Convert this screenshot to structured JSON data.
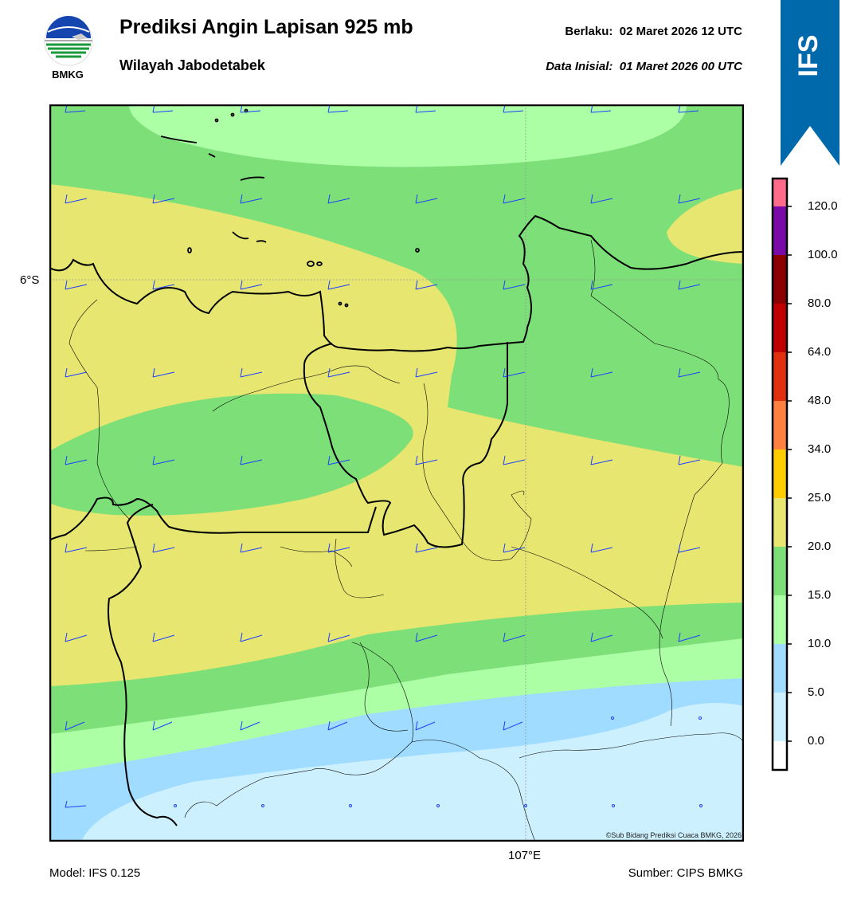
{
  "header": {
    "title": "Prediksi Angin Lapisan 925 mb",
    "subtitle": "Wilayah Jabodetabek",
    "valid_label": "Berlaku:",
    "valid_time": "02 Maret 2026 12 UTC",
    "init_label": "Data Inisial:",
    "init_time": "01 Maret 2026 00 UTC"
  },
  "logo": {
    "text": "BMKG",
    "icon": "bmkg-logo"
  },
  "ribbon": {
    "text": "IFS",
    "color": "#0069ab"
  },
  "map": {
    "lat_label": "6°S",
    "lon_label": "107°E",
    "credit": "©Sub Bidang Prediksi Cuaca BMKG, 2026",
    "wind_barb_color": "#1f3fff"
  },
  "colorbar": {
    "ticks": [
      "120.0",
      "100.0",
      "80.0",
      "64.0",
      "48.0",
      "34.0",
      "25.0",
      "20.0",
      "15.0",
      "10.0",
      "5.0",
      "0.0"
    ],
    "colors": [
      "#ff6b8a",
      "#7a0aa8",
      "#8b0000",
      "#c00000",
      "#e03010",
      "#ff8040",
      "#ffcc00",
      "#e6e671",
      "#7ddf77",
      "#adffa5",
      "#9fdcff",
      "#cdf0ff",
      "#ffffff"
    ]
  },
  "footer": {
    "model": "Model: IFS 0.125",
    "source": "Sumber: CIPS BMKG"
  }
}
